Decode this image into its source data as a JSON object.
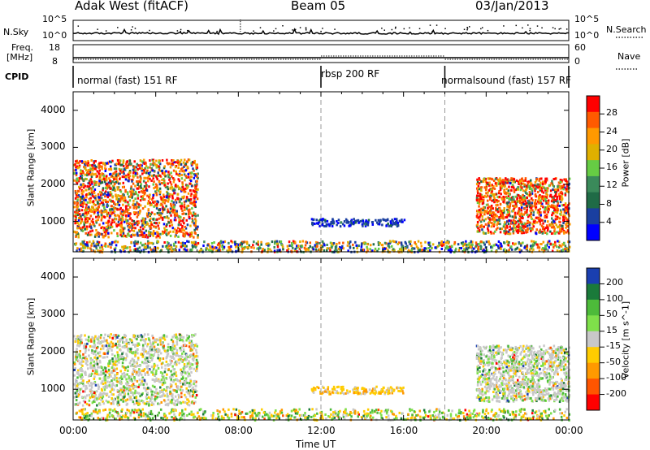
{
  "header": {
    "station": "Adak West (fitACF)",
    "beam": "Beam 05",
    "date": "03/Jan/2013"
  },
  "panels": {
    "nsky_label": "N.Sky",
    "nsky_ticks": [
      "10^5",
      "10^0"
    ],
    "nsearch_label": "N.Search",
    "freq_label_line1": "Freq.",
    "freq_label_line2": "[MHz]",
    "freq_ticks": [
      "18",
      "8"
    ],
    "nave_ticks": [
      "60",
      "0"
    ],
    "nave_label": "Nave",
    "cpid_label": "CPID",
    "cpid_segments": [
      {
        "text": "normal (fast) 151 RF",
        "start_hour": 0,
        "end_hour": 12
      },
      {
        "text": "rbsp 200 RF",
        "start_hour": 12,
        "end_hour": 18
      },
      {
        "text": "normalsound (fast) 157 RF",
        "start_hour": 18,
        "end_hour": 24
      }
    ]
  },
  "chart_data": [
    {
      "type": "heatmap",
      "title": "Power",
      "ylabel": "Slant Range [km]",
      "ylim": [
        180,
        4500
      ],
      "y_ticks": [
        1000,
        2000,
        3000,
        4000
      ],
      "colorbar_label": "Power [dB]",
      "colorbar_ticks": [
        "28",
        "24",
        "20",
        "16",
        "12",
        "8",
        "4"
      ],
      "colorbar_colors": [
        "#ff0000",
        "#ff5a00",
        "#ff9900",
        "#e0b000",
        "#66cc44",
        "#3a8a5a",
        "#1f6b46",
        "#1a3fa0",
        "#0000ff"
      ],
      "echo_regions": [
        {
          "hours": [
            0,
            6
          ],
          "range_km": [
            600,
            2700
          ],
          "level_db": "4-28"
        },
        {
          "hours": [
            11.5,
            16
          ],
          "range_km": [
            900,
            1100
          ],
          "level_db": "4-8"
        },
        {
          "hours": [
            19.5,
            24
          ],
          "range_km": [
            700,
            2200
          ],
          "level_db": "8-28"
        },
        {
          "hours": [
            0,
            24
          ],
          "range_km": [
            200,
            500
          ],
          "level_db": "4-20"
        }
      ]
    },
    {
      "type": "heatmap",
      "title": "Velocity",
      "ylabel": "Slant Range [km]",
      "ylim": [
        180,
        4500
      ],
      "y_ticks": [
        1000,
        2000,
        3000,
        4000
      ],
      "colorbar_label": "Velocity [m s^-1]",
      "colorbar_ticks": [
        "200",
        "100",
        "50",
        "15",
        "-15",
        "-50",
        "-100",
        "-200"
      ],
      "colorbar_colors": [
        "#1a3fb0",
        "#1a7a3a",
        "#4dbb3a",
        "#7fe04a",
        "#c8c8c8",
        "#ffcc00",
        "#ff9900",
        "#ff5500",
        "#ff0000"
      ],
      "echo_regions": [
        {
          "hours": [
            0,
            6
          ],
          "range_km": [
            600,
            2500
          ],
          "velocity": "-15 to 15"
        },
        {
          "hours": [
            11.5,
            16
          ],
          "range_km": [
            900,
            1100
          ],
          "velocity": "-100 to -15"
        },
        {
          "hours": [
            19.5,
            24
          ],
          "range_km": [
            700,
            2200
          ],
          "velocity": "-15 to 50"
        }
      ]
    }
  ],
  "x_axis": {
    "label": "Time UT",
    "ticks": [
      "00:00",
      "04:00",
      "08:00",
      "12:00",
      "16:00",
      "20:00",
      "00:00"
    ]
  }
}
